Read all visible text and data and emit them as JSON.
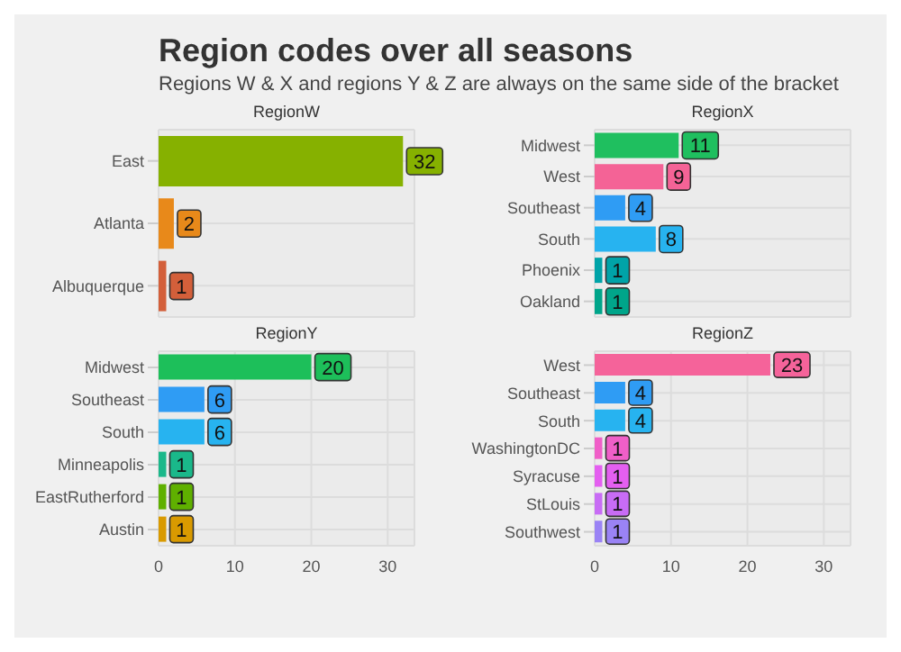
{
  "chart_data": [
    {
      "type": "bar",
      "orientation": "horizontal",
      "title": "RegionW",
      "annotations": [
        "Region codes over all seasons",
        "Regions W & X and regions Y & Z are always on the same side of the bracket"
      ],
      "categories": [
        "East",
        "Atlanta",
        "Albuquerque"
      ],
      "values": [
        32,
        2,
        1
      ],
      "colors": [
        "#86b100",
        "#e8891a",
        "#d35f3a"
      ],
      "xlim": [
        0,
        33.5
      ],
      "xticks": [
        0,
        10,
        20,
        30
      ],
      "grid": true,
      "data_labels": true,
      "tick_labels": "y"
    },
    {
      "type": "bar",
      "orientation": "horizontal",
      "title": "RegionX",
      "categories": [
        "Midwest",
        "West",
        "Southeast",
        "South",
        "Phoenix",
        "Oakland"
      ],
      "values": [
        11,
        9,
        4,
        8,
        1,
        1
      ],
      "colors": [
        "#1fbf5f",
        "#f46396",
        "#2f9cf4",
        "#27b3f0",
        "#00a3a8",
        "#00a58a"
      ],
      "xlim": [
        0,
        33.5
      ],
      "xticks": [
        0,
        10,
        20,
        30
      ],
      "grid": true,
      "data_labels": true,
      "tick_labels": "y"
    },
    {
      "type": "bar",
      "orientation": "horizontal",
      "title": "RegionY",
      "categories": [
        "Midwest",
        "Southeast",
        "South",
        "Minneapolis",
        "EastRutherford",
        "Austin"
      ],
      "values": [
        20,
        6,
        6,
        1,
        1,
        1
      ],
      "colors": [
        "#1dbf5a",
        "#2f9cf4",
        "#27b3f0",
        "#1ab88a",
        "#5fb000",
        "#d99a00"
      ],
      "xlim": [
        0,
        33.5
      ],
      "xticks": [
        0,
        10,
        20,
        30
      ],
      "grid": true,
      "data_labels": true
    },
    {
      "type": "bar",
      "orientation": "horizontal",
      "title": "RegionZ",
      "categories": [
        "West",
        "Southeast",
        "South",
        "WashingtonDC",
        "Syracuse",
        "StLouis",
        "Southwest"
      ],
      "values": [
        23,
        4,
        4,
        1,
        1,
        1,
        1
      ],
      "colors": [
        "#f5639a",
        "#2f9cf4",
        "#27b3f0",
        "#f05fc8",
        "#e45ff0",
        "#c86cf5",
        "#9a83f5"
      ],
      "xlim": [
        0,
        33.5
      ],
      "xticks": [
        0,
        10,
        20,
        30
      ],
      "grid": true,
      "data_labels": true
    }
  ]
}
